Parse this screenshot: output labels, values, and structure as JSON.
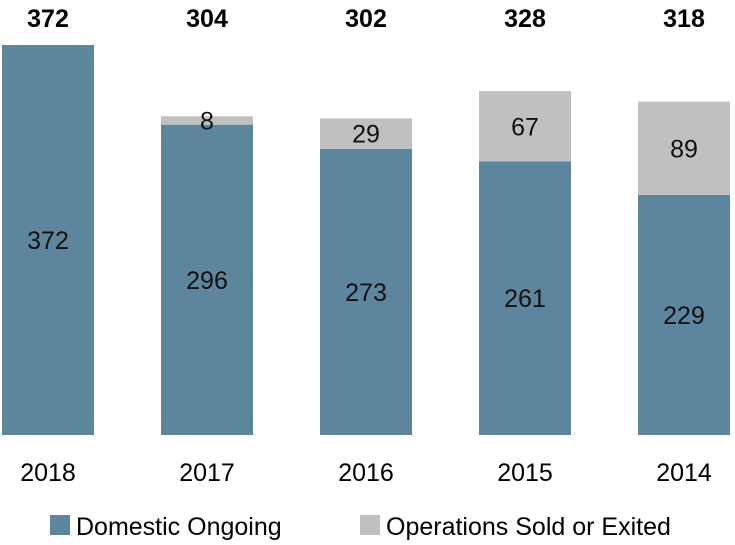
{
  "chart_data": {
    "type": "bar",
    "stacked": true,
    "categories": [
      "2018",
      "2017",
      "2016",
      "2015",
      "2014"
    ],
    "series": [
      {
        "name": "Domestic Ongoing",
        "values": [
          372,
          296,
          273,
          261,
          229
        ],
        "color": "#5d859e"
      },
      {
        "name": "Operations Sold or Exited",
        "values": [
          0,
          8,
          29,
          67,
          89
        ],
        "color": "#c0c0c0"
      }
    ],
    "totals": [
      "372",
      "304",
      "302",
      "328",
      "318"
    ],
    "segment_labels": [
      [
        "372",
        "296",
        "273",
        "261",
        "229"
      ],
      [
        "",
        "8",
        "29",
        "67",
        "89"
      ]
    ],
    "ylim": [
      0,
      372
    ],
    "grid": false,
    "legend": "bottom"
  }
}
